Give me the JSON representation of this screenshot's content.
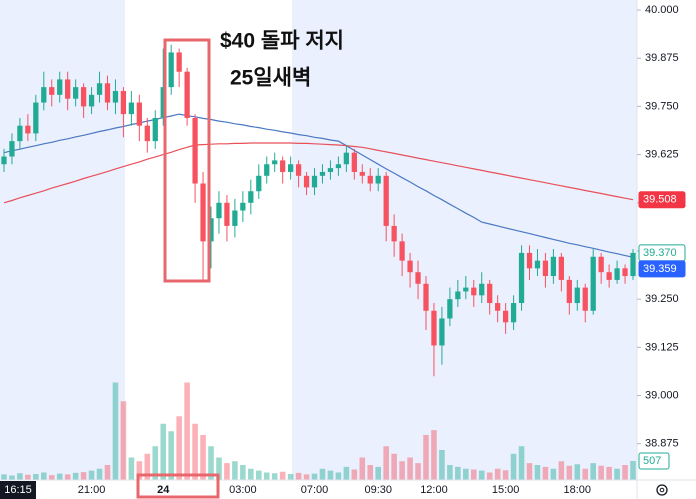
{
  "chart_data": {
    "type": "candlestick",
    "annotations": [
      "$40 돌파 저지",
      "25일새벽"
    ],
    "cursor_time": "16:15",
    "categories": [
      null,
      null,
      null,
      null,
      null,
      null,
      null,
      null,
      null,
      null,
      null,
      "21:00",
      null,
      null,
      null,
      null,
      null,
      null,
      null,
      null,
      "24",
      null,
      null,
      null,
      null,
      null,
      null,
      null,
      null,
      null,
      "03:00",
      null,
      null,
      null,
      null,
      null,
      null,
      null,
      null,
      "07:00",
      null,
      null,
      null,
      null,
      null,
      null,
      null,
      "09:30",
      null,
      null,
      null,
      null,
      null,
      null,
      "12:00",
      null,
      null,
      null,
      null,
      null,
      null,
      null,
      null,
      "15:00",
      null,
      null,
      null,
      null,
      null,
      null,
      null,
      null,
      "18:00",
      null,
      null,
      null,
      null,
      null,
      null,
      null
    ],
    "open": [
      39.6,
      39.62,
      39.66,
      39.7,
      39.68,
      39.76,
      39.8,
      39.78,
      39.82,
      39.77,
      39.8,
      39.75,
      39.78,
      39.81,
      39.76,
      39.79,
      39.73,
      39.76,
      39.7,
      39.66,
      39.72,
      39.8,
      39.89,
      39.84,
      39.72,
      39.55,
      39.4,
      39.46,
      39.5,
      39.44,
      39.48,
      39.5,
      39.53,
      39.57,
      39.6,
      39.61,
      39.58,
      39.6,
      39.57,
      39.54,
      39.57,
      39.58,
      39.59,
      39.6,
      39.63,
      39.58,
      39.57,
      39.55,
      39.57,
      39.44,
      39.4,
      39.35,
      39.32,
      39.29,
      39.22,
      39.13,
      39.2,
      39.25,
      39.27,
      39.28,
      39.26,
      39.29,
      39.24,
      39.22,
      39.19,
      39.24,
      39.37,
      39.33,
      39.35,
      39.31,
      39.36,
      39.3,
      39.24,
      39.28,
      39.22,
      39.36,
      39.32,
      39.3,
      39.33,
      39.31
    ],
    "high": [
      39.64,
      39.68,
      39.72,
      39.73,
      39.78,
      39.84,
      39.82,
      39.84,
      39.84,
      39.82,
      39.81,
      39.8,
      39.84,
      39.83,
      39.82,
      39.8,
      39.79,
      39.78,
      39.72,
      39.74,
      39.9,
      39.91,
      39.9,
      39.85,
      39.73,
      39.58,
      39.49,
      39.53,
      39.52,
      39.51,
      39.53,
      39.56,
      39.6,
      39.62,
      39.63,
      39.62,
      39.62,
      39.61,
      39.58,
      39.59,
      39.6,
      39.61,
      39.62,
      39.65,
      39.64,
      39.6,
      39.59,
      39.59,
      39.58,
      39.47,
      39.42,
      39.37,
      39.35,
      39.31,
      39.24,
      39.23,
      39.28,
      39.3,
      39.31,
      39.3,
      39.32,
      39.3,
      39.26,
      39.24,
      39.26,
      39.39,
      39.39,
      39.38,
      39.37,
      39.38,
      39.37,
      39.31,
      39.3,
      39.29,
      39.38,
      39.37,
      39.34,
      39.35,
      39.34,
      39.38
    ],
    "low": [
      39.58,
      39.6,
      39.64,
      39.66,
      39.66,
      39.74,
      39.75,
      39.76,
      39.74,
      39.75,
      39.72,
      39.73,
      39.76,
      39.74,
      39.73,
      39.67,
      39.7,
      39.66,
      39.63,
      39.64,
      39.7,
      39.78,
      39.8,
      39.7,
      39.5,
      39.3,
      39.33,
      39.42,
      39.4,
      39.41,
      39.45,
      39.47,
      39.51,
      39.55,
      39.58,
      39.55,
      39.56,
      39.54,
      39.52,
      39.52,
      39.55,
      39.56,
      39.57,
      39.58,
      39.56,
      39.55,
      39.53,
      39.53,
      39.4,
      39.36,
      39.31,
      39.28,
      39.25,
      39.17,
      39.05,
      39.08,
      39.18,
      39.23,
      39.25,
      39.23,
      39.24,
      39.21,
      39.19,
      39.16,
      39.17,
      39.22,
      39.3,
      39.31,
      39.28,
      39.29,
      39.27,
      39.21,
      39.22,
      39.19,
      39.21,
      39.29,
      39.28,
      39.29,
      39.29,
      39.3
    ],
    "close": [
      39.62,
      39.66,
      39.7,
      39.68,
      39.76,
      39.8,
      39.78,
      39.82,
      39.77,
      39.8,
      39.75,
      39.78,
      39.81,
      39.76,
      39.79,
      39.73,
      39.76,
      39.7,
      39.66,
      39.72,
      39.8,
      39.89,
      39.84,
      39.72,
      39.55,
      39.4,
      39.46,
      39.5,
      39.44,
      39.48,
      39.5,
      39.53,
      39.57,
      39.6,
      39.61,
      39.58,
      39.6,
      39.57,
      39.54,
      39.57,
      39.58,
      39.59,
      39.6,
      39.63,
      39.58,
      39.57,
      39.55,
      39.57,
      39.44,
      39.4,
      39.35,
      39.32,
      39.29,
      39.22,
      39.13,
      39.2,
      39.25,
      39.27,
      39.28,
      39.26,
      39.29,
      39.24,
      39.22,
      39.19,
      39.24,
      39.37,
      39.33,
      39.35,
      39.31,
      39.36,
      39.3,
      39.24,
      39.28,
      39.22,
      39.36,
      39.32,
      39.3,
      39.33,
      39.31,
      39.37
    ],
    "volume": [
      150,
      120,
      180,
      140,
      160,
      200,
      130,
      170,
      150,
      190,
      210,
      250,
      300,
      400,
      2600,
      2100,
      600,
      500,
      700,
      900,
      1500,
      1300,
      1700,
      2600,
      1500,
      1200,
      900,
      600,
      450,
      500,
      400,
      300,
      250,
      200,
      180,
      220,
      160,
      190,
      150,
      170,
      300,
      250,
      200,
      350,
      280,
      600,
      400,
      350,
      900,
      700,
      500,
      600,
      450,
      1200,
      1330,
      800,
      400,
      350,
      300,
      280,
      250,
      200,
      300,
      260,
      700,
      900,
      450,
      400,
      350,
      300,
      500,
      380,
      420,
      300,
      450,
      380,
      350,
      300,
      400,
      507
    ],
    "moving_averages": [
      {
        "color": "#4a78c2",
        "values": [
          39.63,
          39.635,
          39.639,
          39.644,
          39.648,
          39.653,
          39.657,
          39.662,
          39.666,
          39.671,
          39.675,
          39.68,
          39.685,
          39.689,
          39.694,
          39.698,
          39.703,
          39.707,
          39.712,
          39.716,
          39.721,
          39.725,
          39.73,
          39.726,
          39.723,
          39.719,
          39.716,
          39.712,
          39.709,
          39.705,
          39.702,
          39.698,
          39.695,
          39.691,
          39.688,
          39.684,
          39.681,
          39.677,
          39.674,
          39.67,
          39.667,
          39.663,
          39.66,
          39.648,
          39.636,
          39.624,
          39.612,
          39.6,
          39.588,
          39.577,
          39.565,
          39.554,
          39.542,
          39.531,
          39.519,
          39.508,
          39.496,
          39.485,
          39.473,
          39.462,
          39.45,
          39.445,
          39.44,
          39.435,
          39.43,
          39.425,
          39.42,
          39.415,
          39.41,
          39.405,
          39.4,
          39.395,
          39.391,
          39.386,
          39.382,
          39.377,
          39.372,
          39.368,
          39.363,
          39.359
        ]
      },
      {
        "color": "#e8505b",
        "values": [
          39.5,
          39.506,
          39.513,
          39.519,
          39.525,
          39.531,
          39.538,
          39.544,
          39.55,
          39.556,
          39.563,
          39.569,
          39.575,
          39.581,
          39.588,
          39.594,
          39.6,
          39.606,
          39.613,
          39.619,
          39.625,
          39.631,
          39.638,
          39.644,
          39.65,
          39.651,
          39.652,
          39.653,
          39.653,
          39.654,
          39.654,
          39.655,
          39.655,
          39.655,
          39.655,
          39.655,
          39.655,
          39.654,
          39.654,
          39.653,
          39.652,
          39.651,
          39.65,
          39.648,
          39.646,
          39.644,
          39.64,
          39.636,
          39.632,
          39.628,
          39.624,
          39.62,
          39.616,
          39.612,
          39.608,
          39.604,
          39.6,
          39.596,
          39.592,
          39.588,
          39.584,
          39.58,
          39.576,
          39.572,
          39.568,
          39.564,
          39.56,
          39.556,
          39.552,
          39.548,
          39.544,
          39.54,
          39.536,
          39.532,
          39.528,
          39.524,
          39.52,
          39.516,
          39.512,
          39.508
        ]
      }
    ],
    "up_color": "#22ab94",
    "down_color": "#f7525f",
    "ylim": [
      38.781,
      40.026
    ],
    "yticks": [
      {
        "value": 40,
        "label": "40.000"
      },
      {
        "value": 39.875,
        "label": "39.875"
      },
      {
        "value": 39.75,
        "label": "39.750"
      },
      {
        "value": 39.625,
        "label": "39.625"
      },
      {
        "value": 39.5,
        "label": "39.500"
      },
      {
        "value": 39.375,
        "label": "39.375"
      },
      {
        "value": 39.25,
        "label": "39.250"
      },
      {
        "value": 39.125,
        "label": "39.125"
      },
      {
        "value": 39,
        "label": "39.000"
      },
      {
        "value": 38.875,
        "label": "38.875"
      }
    ],
    "vlim": [
      0,
      4000
    ],
    "grid": false,
    "price_tags": [
      {
        "value": 39.508,
        "label": "39.508",
        "color": "#f23645",
        "style": "filled"
      },
      {
        "value": 39.37,
        "label": "39.370",
        "color": "#22ab94",
        "style": "outline"
      },
      {
        "value": 39.359,
        "label": "39.359",
        "color": "#2962ff",
        "style": "filled"
      }
    ],
    "volume_tag": {
      "value": 507,
      "label": "507",
      "color": "#22ab94"
    }
  }
}
